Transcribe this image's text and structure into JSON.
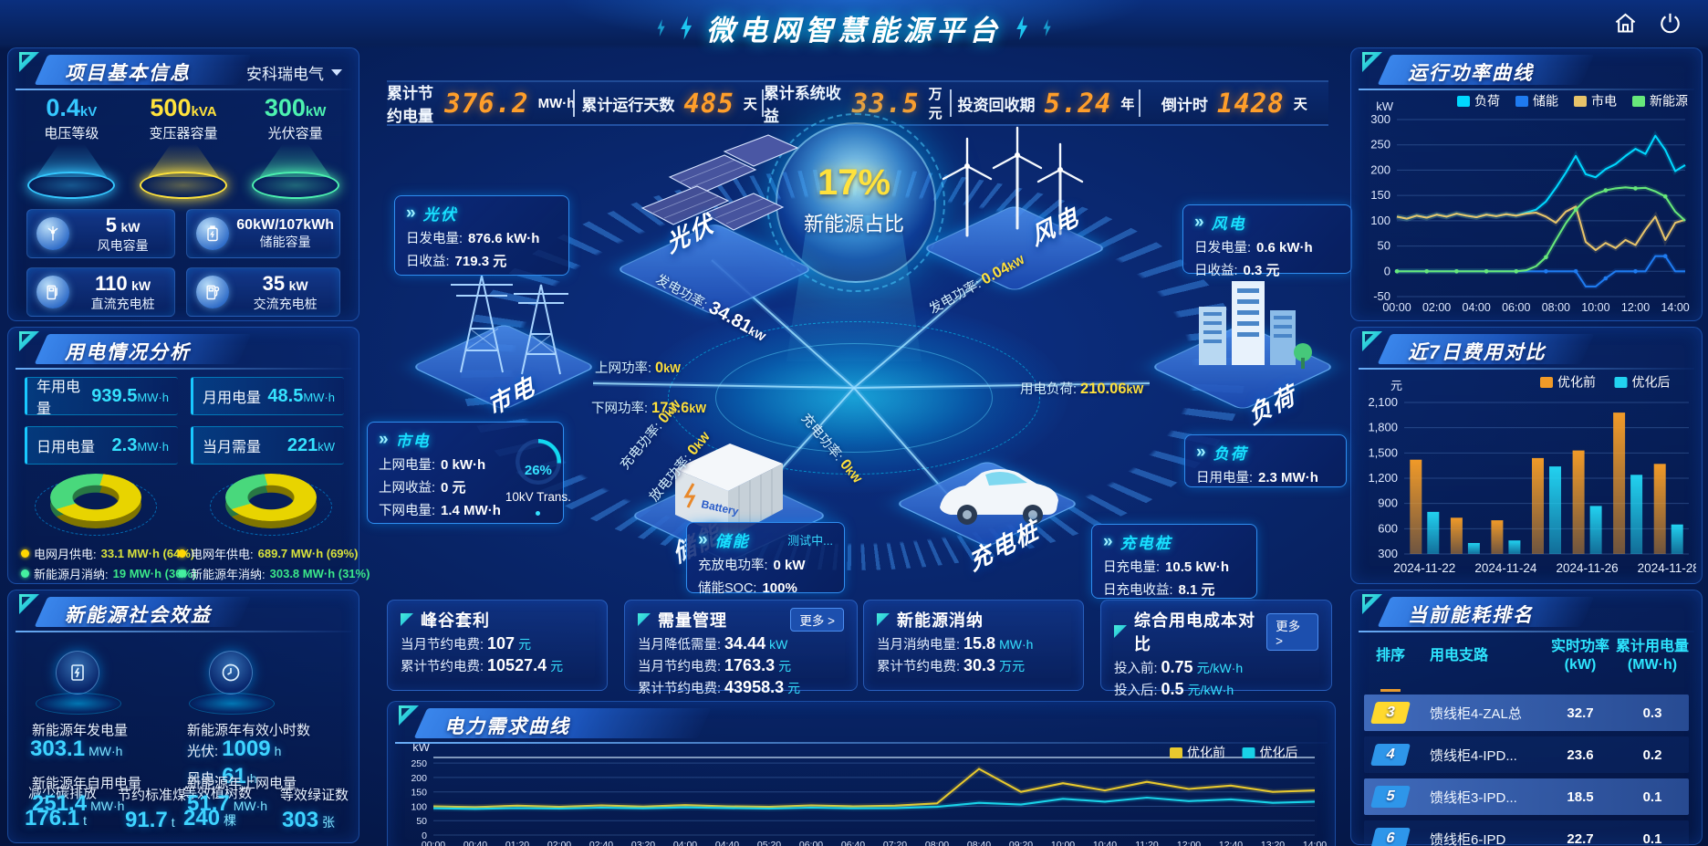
{
  "header": {
    "title": "微电网智慧能源平台"
  },
  "kpis": [
    {
      "label": "累计节约电量",
      "value": "376.2",
      "unit": "MW·h"
    },
    {
      "label": "累计运行天数",
      "value": "485",
      "unit": "天"
    },
    {
      "label": "累计系统收益",
      "value": "33.5",
      "unit": "万元"
    },
    {
      "label": "投资回收期",
      "value": "5.24",
      "unit": "年"
    },
    {
      "label": "倒计时",
      "value": "1428",
      "unit": "天"
    }
  ],
  "project": {
    "title": "项目基本信息",
    "company": "安科瑞电气",
    "spotlights": [
      {
        "value": "0.4",
        "unit": "kV",
        "label": "电压等级",
        "color": "#35c8ff"
      },
      {
        "value": "500",
        "unit": "kVA",
        "label": "变压器容量",
        "color": "#ffe33c"
      },
      {
        "value": "300",
        "unit": "kW",
        "label": "光伏容量",
        "color": "#4df2b0"
      }
    ],
    "cards": [
      {
        "value": "5",
        "unit": "kW",
        "label": "风电容量",
        "icon": "wind-turbine-icon"
      },
      {
        "value": "60kW/107kWh",
        "unit": "",
        "label": "储能容量",
        "icon": "battery-icon"
      },
      {
        "value": "110",
        "unit": "kW",
        "label": "直流充电桩",
        "icon": "dc-charger-icon"
      },
      {
        "value": "35",
        "unit": "kW",
        "label": "交流充电桩",
        "icon": "ac-charger-icon"
      }
    ]
  },
  "usage": {
    "title": "用电情况分析",
    "stats": [
      {
        "label": "年用电量",
        "value": "939.5",
        "unit": "MW·h"
      },
      {
        "label": "月用电量",
        "value": "48.5",
        "unit": "MW·h"
      },
      {
        "label": "日用电量",
        "value": "2.3",
        "unit": "MW·h"
      },
      {
        "label": "当月需量",
        "value": "221",
        "unit": "kW"
      }
    ],
    "donuts": [
      {
        "grid_pct": 64,
        "renew_pct": 36
      },
      {
        "grid_pct": 69,
        "renew_pct": 31
      }
    ],
    "legend": [
      {
        "label": "电网月供电:",
        "value": "33.1 MW·h (64%)",
        "dot": "#ffd702",
        "vcolor": "#d8e23c"
      },
      {
        "label": "电网年供电:",
        "value": "689.7 MW·h (69%)",
        "dot": "#ffd702",
        "vcolor": "#d8e23c"
      },
      {
        "label": "新能源月消纳:",
        "value": "19 MW·h (36%)",
        "dot": "#45f0a0",
        "vcolor": "#3be88a"
      },
      {
        "label": "新能源年消纳:",
        "value": "303.8 MW·h (31%)",
        "dot": "#45f0a0",
        "vcolor": "#3be88a"
      }
    ]
  },
  "social": {
    "title": "新能源社会效益",
    "gen": {
      "label": "新能源年发电量",
      "value": "303.1",
      "unit": "MW·h"
    },
    "hours": {
      "label": "新能源年有效小时数",
      "pv_k": "光伏:",
      "pv_v": "1009",
      "pv_u": "h",
      "wind_k": "风电:",
      "wind_v": "61",
      "wind_u": "h"
    },
    "self": {
      "label": "新能源年自用电量",
      "value": "251.4",
      "unit": "MW·h"
    },
    "co2": {
      "label": "减少碳排放",
      "value": "176.1",
      "unit": "t"
    },
    "coal": {
      "label": "节约标准煤",
      "value": "91.7",
      "unit": "t"
    },
    "export": {
      "label": "新能源年上网电量",
      "value": "51.7",
      "unit": "MW·h"
    },
    "trees": {
      "label": "等效植树数",
      "value": "240",
      "unit": "棵"
    },
    "cert": {
      "label": "等效绿证数",
      "value": "303",
      "unit": "张"
    }
  },
  "diagram": {
    "center_value": "17%",
    "center_label": "新能源占比",
    "nodes": [
      {
        "id": "pv",
        "title": "光伏",
        "rows": [
          [
            "日发电量:",
            "876.6 kW·h"
          ],
          [
            "日收益:",
            "719.3 元"
          ]
        ]
      },
      {
        "id": "wind",
        "title": "风电",
        "rows": [
          [
            "日发电量:",
            "0.6 kW·h"
          ],
          [
            "日收益:",
            "0.3 元"
          ]
        ]
      },
      {
        "id": "grid",
        "title": "市电",
        "rows": [
          [
            "上网电量:",
            "0 kW·h"
          ],
          [
            "上网收益:",
            "0 元"
          ],
          [
            "下网电量:",
            "1.4 MW·h"
          ]
        ],
        "gauge": "26%",
        "gauge_label": "10kV Trans."
      },
      {
        "id": "storage",
        "title": "储能",
        "status": "测试中...",
        "rows": [
          [
            "充放电功率:",
            "0 kW"
          ],
          [
            "储能SOC:",
            "100%"
          ]
        ]
      },
      {
        "id": "load",
        "title": "负荷",
        "rows": [
          [
            "日用电量:",
            "2.3 MW·h"
          ]
        ]
      },
      {
        "id": "charger",
        "title": "充电桩",
        "rows": [
          [
            "日充电量:",
            "10.5 kW·h"
          ],
          [
            "日充电收益:",
            "8.1 元"
          ]
        ]
      }
    ],
    "iso_labels": {
      "pv": "光伏",
      "wind": "风电",
      "grid": "市电",
      "storage": "储能",
      "charger": "充电桩",
      "load": "负荷"
    },
    "flows": [
      {
        "label": "发电功率:",
        "value": "34.81",
        "unit": "kW",
        "cls": "f1 big"
      },
      {
        "label": "发电功率:",
        "value": "0.04",
        "unit": "kW",
        "cls": "f2"
      },
      {
        "label": "上网功率:",
        "value": "0",
        "unit": "kW",
        "cls": "f3"
      },
      {
        "label": "下网功率:",
        "value": "171.6",
        "unit": "kW",
        "cls": "f4"
      },
      {
        "label": "用电负荷:",
        "value": "210.06",
        "unit": "kW",
        "cls": "f5"
      },
      {
        "label": "充电功率:",
        "value": "0",
        "unit": "kW",
        "cls": "f6"
      },
      {
        "label": "放电功率:",
        "value": "0",
        "unit": "kW",
        "cls": "f7"
      },
      {
        "label": "充电功率:",
        "value": "0",
        "unit": "kW",
        "cls": "f8"
      }
    ]
  },
  "benefit_cards": [
    {
      "title": "峰谷套利",
      "more": false,
      "rows": [
        [
          "当月节约电费:",
          "107",
          "元"
        ],
        [
          "累计节约电费:",
          "10527.4",
          "元"
        ]
      ]
    },
    {
      "title": "需量管理",
      "more": true,
      "rows": [
        [
          "当月降低需量:",
          "34.44",
          "kW"
        ],
        [
          "当月节约电费:",
          "1763.3",
          "元"
        ],
        [
          "累计节约电费:",
          "43958.3",
          "元"
        ]
      ]
    },
    {
      "title": "新能源消纳",
      "more": false,
      "rows": [
        [
          "当月消纳电量:",
          "15.8",
          "MW·h"
        ],
        [
          "累计节约电费:",
          "30.3",
          "万元"
        ]
      ]
    },
    {
      "title": "综合用电成本对比",
      "more": true,
      "rows": [
        [
          "投入前:",
          "0.75",
          "元/kW·h"
        ],
        [
          "投入后:",
          "0.5",
          "元/kW·h"
        ]
      ]
    }
  ],
  "more_label": "更多 >",
  "panels": {
    "power": "运行功率曲线",
    "cost": "近7日费用对比",
    "rank": "当前能耗排名",
    "demand": "电力需求曲线"
  },
  "ranking": {
    "columns": [
      "排序",
      "用电支路",
      "实时功率\n(kW)",
      "累计用电量\n(MW·h)"
    ],
    "rows": [
      {
        "rank": "3",
        "branch": "馈线柜4-ZAL总",
        "power": "32.7",
        "energy": "0.3",
        "badge": "#ffd92e",
        "hl": true
      },
      {
        "rank": "4",
        "branch": "馈线柜4-IPD...",
        "power": "23.6",
        "energy": "0.2",
        "badge": "#2e96ea",
        "hl": false
      },
      {
        "rank": "5",
        "branch": "馈线柜3-IPD...",
        "power": "18.5",
        "energy": "0.1",
        "badge": "#2e96ea",
        "hl": true
      },
      {
        "rank": "6",
        "branch": "馈线柜6-IPD",
        "power": "22.7",
        "energy": "0.1",
        "badge": "#2e96ea",
        "hl": false
      }
    ]
  },
  "chart_data": [
    {
      "type": "line",
      "title": "运行功率曲线",
      "ylabel": "kW",
      "ylim": [
        -50,
        300
      ],
      "yticks": [
        -50,
        0,
        50,
        100,
        150,
        200,
        250,
        300
      ],
      "xticks": [
        "00:00",
        "02:00",
        "04:00",
        "06:00",
        "08:00",
        "10:00",
        "12:00",
        "14:00"
      ],
      "xtick_idx": [
        0,
        4,
        8,
        12,
        16,
        20,
        24,
        28
      ],
      "x_step_minutes": 30,
      "legend_position": "top",
      "series": [
        {
          "name": "负荷",
          "color": "#00d8ff",
          "values": [
            108,
            104,
            110,
            106,
            112,
            108,
            114,
            110,
            107,
            112,
            109,
            113,
            110,
            116,
            122,
            138,
            165,
            195,
            228,
            192,
            186,
            202,
            212,
            228,
            242,
            232,
            268,
            240,
            198,
            210
          ]
        },
        {
          "name": "储能",
          "color": "#1f7bf0",
          "marker": true,
          "values": [
            0,
            0,
            0,
            0,
            0,
            0,
            0,
            0,
            0,
            0,
            0,
            0,
            0,
            0,
            0,
            0,
            0,
            0,
            0,
            -30,
            -30,
            -14,
            0,
            0,
            0,
            0,
            30,
            30,
            0,
            0
          ]
        },
        {
          "name": "市电",
          "color": "#e6c36a",
          "values": [
            108,
            104,
            110,
            106,
            112,
            108,
            114,
            110,
            107,
            112,
            109,
            113,
            110,
            114,
            116,
            108,
            96,
            118,
            128,
            58,
            42,
            56,
            46,
            62,
            52,
            82,
            108,
            62,
            96,
            102
          ]
        },
        {
          "name": "新能源",
          "color": "#67e87a",
          "marker": true,
          "values": [
            0,
            0,
            0,
            0,
            0,
            0,
            0,
            0,
            0,
            0,
            0,
            0,
            0,
            2,
            10,
            28,
            62,
            95,
            122,
            142,
            153,
            160,
            164,
            166,
            164,
            165,
            158,
            148,
            118,
            100
          ]
        }
      ]
    },
    {
      "type": "bar",
      "title": "近7日费用对比",
      "ylabel": "元",
      "ylim": [
        300,
        2100
      ],
      "yticks": [
        300,
        600,
        900,
        1200,
        1500,
        1800,
        2100
      ],
      "categories": [
        "2024-11-22",
        "2024-11-23",
        "2024-11-24",
        "2024-11-25",
        "2024-11-26",
        "2024-11-27",
        "2024-11-28"
      ],
      "xtick_idx": [
        0,
        2,
        4,
        6
      ],
      "legend_position": "top-right",
      "series": [
        {
          "name": "优化前",
          "color": "#f09a28",
          "values": [
            1420,
            730,
            700,
            1440,
            1530,
            1980,
            1370
          ]
        },
        {
          "name": "优化后",
          "color": "#22d2f0",
          "values": [
            800,
            430,
            460,
            1340,
            870,
            1240,
            650
          ]
        }
      ]
    },
    {
      "type": "line",
      "title": "电力需求曲线",
      "ylabel": "kW",
      "ylim": [
        0,
        260
      ],
      "yticks": [
        0,
        50,
        100,
        150,
        200,
        250
      ],
      "xticks": [
        "00:00",
        "00:40",
        "01:20",
        "02:00",
        "02:40",
        "03:20",
        "04:00",
        "04:40",
        "05:20",
        "06:00",
        "06:40",
        "07:20",
        "08:00",
        "08:40",
        "09:20",
        "10:00",
        "10:40",
        "11:20",
        "12:00",
        "12:40",
        "13:20",
        "14:00"
      ],
      "legend_position": "top-right",
      "series": [
        {
          "name": "优化前",
          "color": "#e8c92e",
          "values": [
            100,
            97,
            102,
            98,
            103,
            99,
            104,
            100,
            98,
            103,
            100,
            102,
            110,
            230,
            150,
            180,
            155,
            185,
            160,
            172,
            150,
            155
          ]
        },
        {
          "name": "优化后",
          "color": "#19d2e8",
          "values": [
            93,
            91,
            94,
            92,
            95,
            93,
            96,
            94,
            92,
            95,
            93,
            94,
            98,
            112,
            106,
            126,
            116,
            130,
            118,
            124,
            112,
            116
          ]
        }
      ]
    }
  ]
}
